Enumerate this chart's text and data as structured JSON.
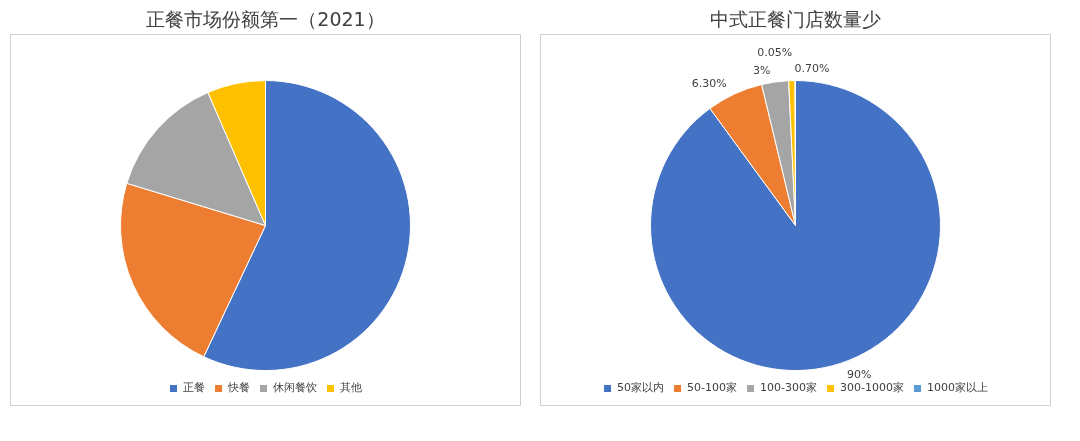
{
  "chart_data": [
    {
      "type": "pie",
      "title": "正餐市场份额第一（2021）",
      "categories": [
        "正餐",
        "快餐",
        "休闲餐饮",
        "其他"
      ],
      "values": [
        57,
        22.7,
        13.8,
        6.5
      ],
      "colors": [
        "#4472c4",
        "#ed7d31",
        "#a5a5a5",
        "#ffc000"
      ],
      "legend": "bottom"
    },
    {
      "type": "pie",
      "title": "中式正餐门店数量少",
      "categories": [
        "50家以内",
        "50-100家",
        "100-300家",
        "300-1000家",
        "1000家以上"
      ],
      "values": [
        90,
        6.3,
        3,
        0.7,
        0.05
      ],
      "value_labels": [
        "90%",
        "6.30%",
        "3%",
        "0.70%",
        "0.05%"
      ],
      "colors": [
        "#4472c4",
        "#ed7d31",
        "#a5a5a5",
        "#ffc000",
        "#5b9bd5"
      ],
      "legend": "bottom"
    }
  ]
}
